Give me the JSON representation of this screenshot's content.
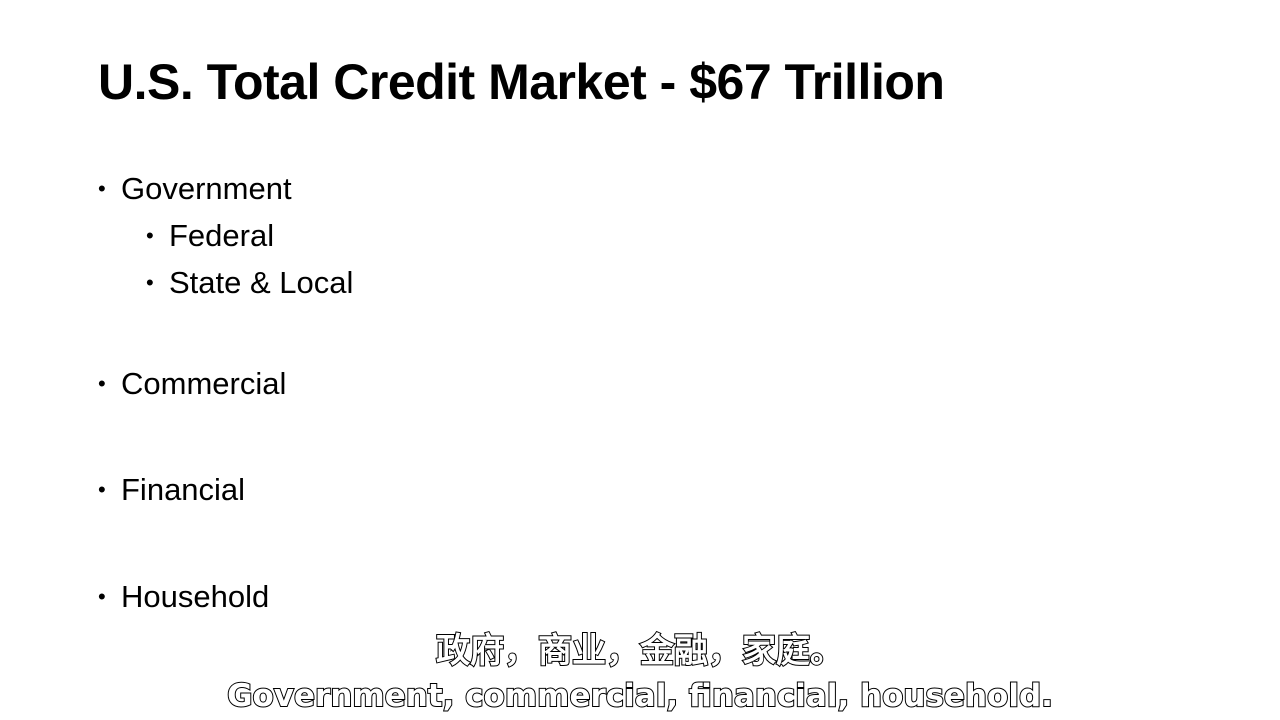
{
  "slide": {
    "title": "U.S. Total Credit Market - $67 Trillion",
    "bullet_glyph": "•",
    "bullets": [
      {
        "label": "Government",
        "children": [
          "Federal",
          "State & Local"
        ]
      },
      {
        "label": "Commercial"
      },
      {
        "label": "Financial"
      },
      {
        "label": "Household"
      }
    ]
  },
  "subtitles": {
    "chinese": "政府，商业，金融，家庭。",
    "english": "Government, commercial, financial, household."
  }
}
